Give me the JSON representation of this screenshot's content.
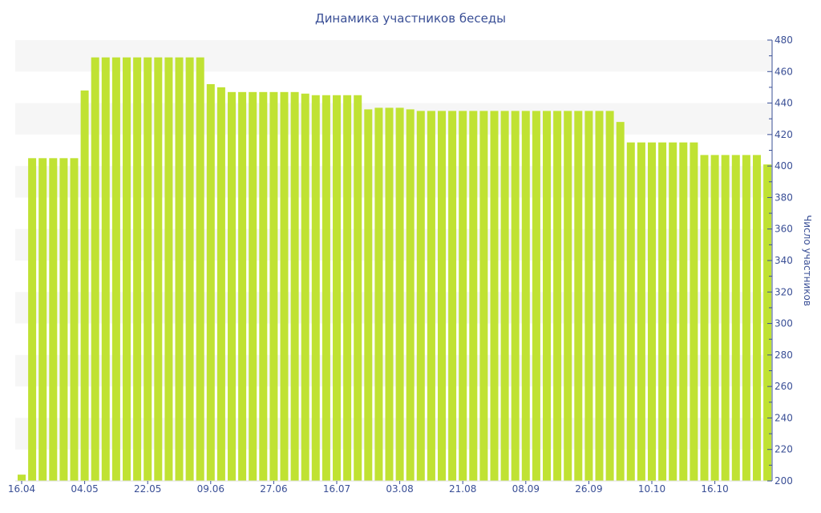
{
  "colors": {
    "bar": "#c0e233",
    "band": "#f6f6f6",
    "axis": "#3a4f96",
    "text": "#3a4f96"
  },
  "chart_data": {
    "type": "bar",
    "title": "Динамика участников беседы",
    "xlabel": "",
    "ylabel": "Число участников",
    "y_axis_side": "right",
    "ylim": [
      200,
      480
    ],
    "y_ticks": [
      200,
      220,
      240,
      260,
      280,
      300,
      320,
      340,
      360,
      380,
      400,
      420,
      440,
      460,
      480
    ],
    "x_tick_labels": [
      "16.04",
      "04.05",
      "22.05",
      "09.06",
      "27.06",
      "16.07",
      "03.08",
      "21.08",
      "08.09",
      "26.09",
      "10.10",
      "16.10"
    ],
    "x_tick_indices": [
      0,
      6,
      12,
      18,
      24,
      30,
      36,
      42,
      48,
      54,
      60,
      66
    ],
    "grid": "alternating horizontal bands",
    "values": [
      204,
      405,
      405,
      405,
      405,
      405,
      448,
      469,
      469,
      469,
      469,
      469,
      469,
      469,
      469,
      469,
      469,
      469,
      452,
      450,
      447,
      447,
      447,
      447,
      447,
      447,
      447,
      446,
      445,
      445,
      445,
      445,
      445,
      436,
      437,
      437,
      437,
      436,
      435,
      435,
      435,
      435,
      435,
      435,
      435,
      435,
      435,
      435,
      435,
      435,
      435,
      435,
      435,
      435,
      435,
      435,
      435,
      428,
      415,
      415,
      415,
      415,
      415,
      415,
      415,
      407,
      407,
      407,
      407,
      407,
      407,
      401
    ]
  }
}
